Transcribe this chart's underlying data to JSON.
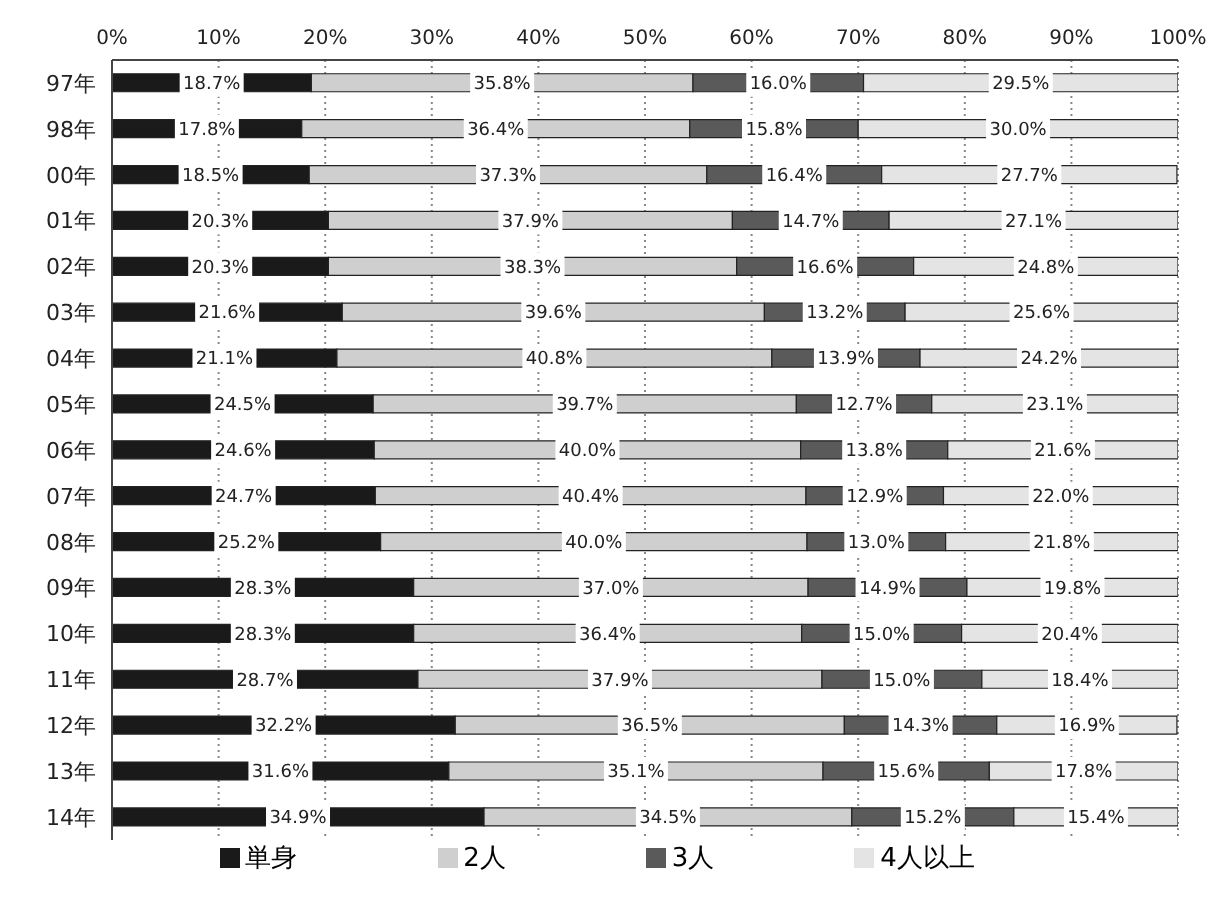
{
  "chart_data": {
    "type": "bar",
    "orientation": "horizontal",
    "stacked": true,
    "categories": [
      "97年",
      "98年",
      "00年",
      "01年",
      "02年",
      "03年",
      "04年",
      "05年",
      "06年",
      "07年",
      "08年",
      "09年",
      "10年",
      "11年",
      "12年",
      "13年",
      "14年"
    ],
    "series": [
      {
        "name": "単身",
        "color": "#1a1a1a",
        "values": [
          18.7,
          17.8,
          18.5,
          20.3,
          20.3,
          21.6,
          21.1,
          24.5,
          24.6,
          24.7,
          25.2,
          28.3,
          28.3,
          28.7,
          32.2,
          31.6,
          34.9
        ],
        "value_labels": [
          "18.7%",
          "17.8%",
          "18.5%",
          "20.3%",
          "20.3%",
          "21.6%",
          "21.1%",
          "24.5%",
          "24.6%",
          "24.7%",
          "25.2%",
          "28.3%",
          "28.3%",
          "28.7%",
          "32.2%",
          "31.6%",
          "34.9%"
        ]
      },
      {
        "name": "2人",
        "color": "#cfcfcf",
        "values": [
          35.8,
          36.4,
          37.3,
          37.9,
          38.3,
          39.6,
          40.8,
          39.7,
          40.0,
          40.4,
          40.0,
          37.0,
          36.4,
          37.9,
          36.5,
          35.1,
          34.5
        ],
        "value_labels": [
          "35.8%",
          "36.4%",
          "37.3%",
          "37.9%",
          "38.3%",
          "39.6%",
          "40.8%",
          "39.7%",
          "40.0%",
          "40.4%",
          "40.0%",
          "37.0%",
          "36.4%",
          "37.9%",
          "36.5%",
          "35.1%",
          "34.5%"
        ]
      },
      {
        "name": "3人",
        "color": "#5a5a5a",
        "values": [
          16.0,
          15.8,
          16.4,
          14.7,
          16.6,
          13.2,
          13.9,
          12.7,
          13.8,
          12.9,
          13.0,
          14.9,
          15.0,
          15.0,
          14.3,
          15.6,
          15.2
        ],
        "value_labels": [
          "16.0%",
          "15.8%",
          "16.4%",
          "14.7%",
          "16.6%",
          "13.2%",
          "13.9%",
          "12.7%",
          "13.8%",
          "12.9%",
          "13.0%",
          "14.9%",
          "15.0%",
          "15.0%",
          "14.3%",
          "15.6%",
          "15.2%"
        ]
      },
      {
        "name": "4人以上",
        "color": "#e4e4e4",
        "values": [
          29.5,
          30.0,
          27.7,
          27.1,
          24.8,
          25.6,
          24.2,
          23.1,
          21.6,
          22.0,
          21.8,
          19.8,
          20.4,
          18.4,
          16.9,
          17.8,
          15.4
        ],
        "value_labels": [
          "29.5%",
          "30.0%",
          "27.7%",
          "27.1%",
          "24.8%",
          "25.6%",
          "24.2%",
          "23.1%",
          "21.6%",
          "22.0%",
          "21.8%",
          "19.8%",
          "20.4%",
          "18.4%",
          "16.9%",
          "17.8%",
          "15.4%"
        ]
      }
    ],
    "xlim": [
      0,
      100
    ],
    "xticks": [
      {
        "value": 0,
        "label": "0%"
      },
      {
        "value": 10,
        "label": "10%"
      },
      {
        "value": 20,
        "label": "20%"
      },
      {
        "value": 30,
        "label": "30%"
      },
      {
        "value": 40,
        "label": "40%"
      },
      {
        "value": 50,
        "label": "50%"
      },
      {
        "value": 60,
        "label": "60%"
      },
      {
        "value": 70,
        "label": "70%"
      },
      {
        "value": 80,
        "label": "80%"
      },
      {
        "value": 90,
        "label": "90%"
      },
      {
        "value": 100,
        "label": "100%"
      }
    ],
    "grid": "x",
    "legend": "bottom"
  }
}
